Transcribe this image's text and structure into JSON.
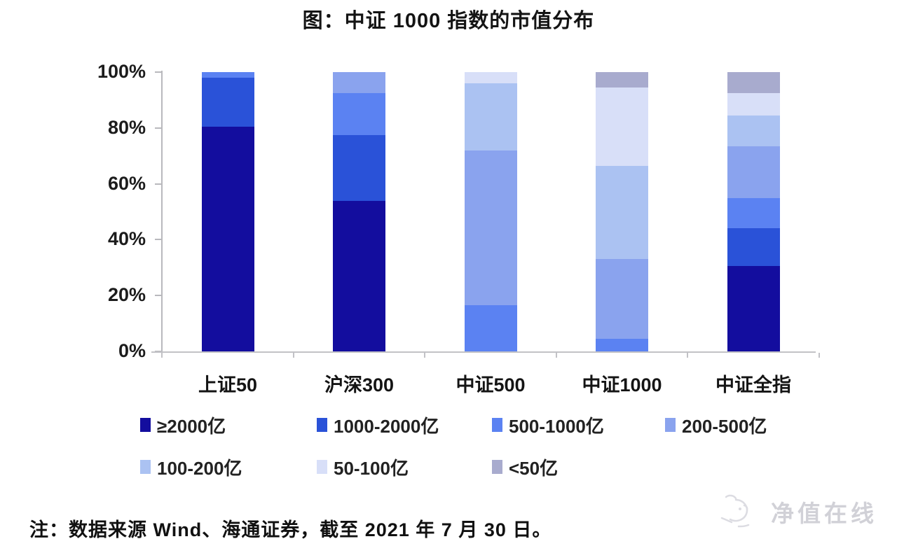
{
  "title": "图：中证 1000 指数的市值分布",
  "footnote": "注：数据来源 Wind、海通证券，截至 2021 年 7 月 30 日。",
  "watermark": {
    "text": "净值在线",
    "icon": "panda-sketch-icon"
  },
  "chart_data": {
    "type": "bar",
    "stacked": true,
    "grid": false,
    "legend_position": "bottom",
    "title": "图：中证 1000 指数的市值分布",
    "ylabel": "",
    "xlabel": "",
    "ylim": [
      0,
      100
    ],
    "y_ticks": [
      "0%",
      "20%",
      "40%",
      "60%",
      "80%",
      "100%"
    ],
    "categories": [
      "上证50",
      "沪深300",
      "中证500",
      "中证1000",
      "中证全指"
    ],
    "series": [
      {
        "name": "≥2000亿",
        "color": "#130d9e",
        "values": [
          80.5,
          54,
          0,
          0,
          30.5
        ]
      },
      {
        "name": "1000-2000亿",
        "color": "#2a52d8",
        "values": [
          17.5,
          23.5,
          0,
          0,
          13.5
        ]
      },
      {
        "name": "500-1000亿",
        "color": "#5b82f2",
        "values": [
          2,
          15,
          16.5,
          4.5,
          11
        ]
      },
      {
        "name": "200-500亿",
        "color": "#8aa3ee",
        "values": [
          0,
          7.5,
          55.5,
          28.5,
          18.5
        ]
      },
      {
        "name": "100-200亿",
        "color": "#abc2f2",
        "values": [
          0,
          0,
          24,
          33.5,
          11
        ]
      },
      {
        "name": "50-100亿",
        "color": "#d8dff8",
        "values": [
          0,
          0,
          4,
          28,
          8
        ]
      },
      {
        "name": "<50亿",
        "color": "#a8abce",
        "values": [
          0,
          0,
          0,
          5.5,
          7.5
        ]
      }
    ]
  }
}
